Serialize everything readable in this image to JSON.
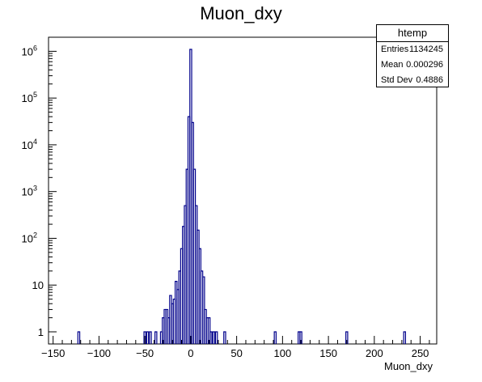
{
  "chart_data": {
    "type": "histogram",
    "title": "Muon_dxy",
    "xlabel": "Muon_dxy",
    "ylabel": "",
    "xlim": [
      -155,
      268
    ],
    "ylim": [
      0.55,
      2000000
    ],
    "yscale": "log",
    "x_ticks": [
      -150,
      -100,
      -50,
      0,
      50,
      100,
      150,
      200,
      250
    ],
    "x_tick_labels": [
      "−150",
      "−100",
      "−50",
      "0",
      "50",
      "100",
      "150",
      "200",
      "250"
    ],
    "y_tick_labels": [
      {
        "value": 1,
        "base": "1",
        "exp": ""
      },
      {
        "value": 10,
        "base": "10",
        "exp": ""
      },
      {
        "value": 100,
        "base": "10",
        "exp": "2"
      },
      {
        "value": 1000,
        "base": "10",
        "exp": "3"
      },
      {
        "value": 10000,
        "base": "10",
        "exp": "4"
      },
      {
        "value": 100000,
        "base": "10",
        "exp": "5"
      },
      {
        "value": 1000000,
        "base": "10",
        "exp": "6"
      }
    ],
    "line_color": "#00008b",
    "bins": [
      [
        -122,
        1
      ],
      [
        -50,
        1
      ],
      [
        -47,
        1
      ],
      [
        -44,
        1
      ],
      [
        -38,
        1
      ],
      [
        -32,
        1
      ],
      [
        -30,
        2
      ],
      [
        -28,
        3
      ],
      [
        -26,
        3
      ],
      [
        -24,
        2
      ],
      [
        -22,
        6
      ],
      [
        -20,
        4
      ],
      [
        -18,
        5
      ],
      [
        -16,
        12
      ],
      [
        -14,
        8
      ],
      [
        -12,
        20
      ],
      [
        -10,
        60
      ],
      [
        -8,
        180
      ],
      [
        -6,
        500
      ],
      [
        -4,
        3000
      ],
      [
        -2,
        40000
      ],
      [
        0,
        1100000
      ],
      [
        2,
        30000
      ],
      [
        4,
        3000
      ],
      [
        6,
        500
      ],
      [
        8,
        150
      ],
      [
        10,
        60
      ],
      [
        12,
        20
      ],
      [
        14,
        15
      ],
      [
        16,
        3
      ],
      [
        18,
        2
      ],
      [
        20,
        2
      ],
      [
        22,
        1
      ],
      [
        25,
        1
      ],
      [
        28,
        1
      ],
      [
        37,
        1
      ],
      [
        92,
        1
      ],
      [
        118,
        1
      ],
      [
        120,
        1
      ],
      [
        170,
        1
      ],
      [
        233,
        1
      ]
    ],
    "bin_width": 2
  },
  "stats_box": {
    "name": "htemp",
    "entries_label": "Entries",
    "entries_value": "1134245",
    "mean_label": "Mean",
    "mean_value": "0.000296",
    "stddev_label": "Std Dev",
    "stddev_value": "0.4886"
  }
}
